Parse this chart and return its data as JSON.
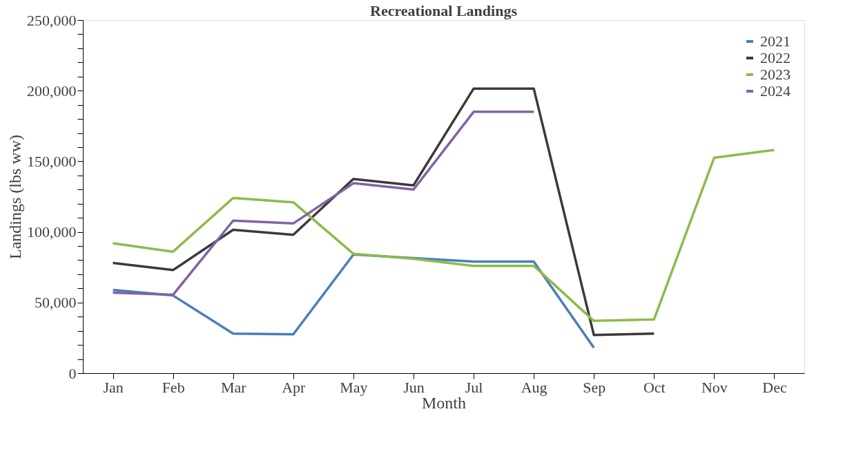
{
  "chart_data": {
    "type": "line",
    "title": "Recreational Landings",
    "xlabel": "Month",
    "ylabel": "Landings (lbs ww)",
    "categories": [
      "Jan",
      "Feb",
      "Mar",
      "Apr",
      "May",
      "Jun",
      "Jul",
      "Aug",
      "Sep",
      "Oct",
      "Nov",
      "Dec"
    ],
    "series": [
      {
        "name": "2021",
        "color": "#4a7ebb",
        "values": [
          59000,
          55000,
          28000,
          27500,
          84000,
          81500,
          79000,
          79000,
          18000,
          null,
          null,
          null
        ]
      },
      {
        "name": "2022",
        "color": "#3a3a3a",
        "values": [
          78000,
          73000,
          101500,
          98000,
          137500,
          133000,
          201500,
          201500,
          27000,
          28000,
          null,
          null
        ]
      },
      {
        "name": "2023",
        "color": "#8cbb4a",
        "values": [
          92000,
          86000,
          124000,
          121000,
          84500,
          81000,
          76000,
          76000,
          37000,
          38000,
          152500,
          158000
        ]
      },
      {
        "name": "2024",
        "color": "#8064a2",
        "values": [
          57000,
          55500,
          108000,
          106000,
          134500,
          130000,
          185000,
          185000,
          null,
          null,
          null,
          null
        ]
      }
    ],
    "ylim": [
      0,
      250000
    ],
    "yticks": [
      0,
      {
        "value": 10000,
        "label": null
      },
      {
        "value": 20000,
        "label": null
      },
      {
        "value": 30000,
        "label": null
      },
      {
        "value": 40000,
        "label": null
      },
      {
        "value": 50000,
        "label": "50,000"
      },
      {
        "value": 60000,
        "label": null
      },
      {
        "value": 70000,
        "label": null
      },
      {
        "value": 80000,
        "label": null
      },
      {
        "value": 90000,
        "label": null
      },
      {
        "value": 100000,
        "label": "100,000"
      },
      {
        "value": 110000,
        "label": null
      },
      {
        "value": 120000,
        "label": null
      },
      {
        "value": 130000,
        "label": null
      },
      {
        "value": 140000,
        "label": null
      },
      {
        "value": 150000,
        "label": "150,000"
      },
      {
        "value": 160000,
        "label": null
      },
      {
        "value": 170000,
        "label": null
      },
      {
        "value": 180000,
        "label": null
      },
      {
        "value": 190000,
        "label": null
      },
      {
        "value": 200000,
        "label": "200,000"
      },
      {
        "value": 210000,
        "label": null
      },
      {
        "value": 220000,
        "label": null
      },
      {
        "value": 230000,
        "label": null
      },
      {
        "value": 240000,
        "label": null
      },
      {
        "value": 250000,
        "label": "250,000"
      }
    ],
    "grid": false,
    "legend": "top right",
    "marker": "none",
    "line_style": "solid"
  }
}
